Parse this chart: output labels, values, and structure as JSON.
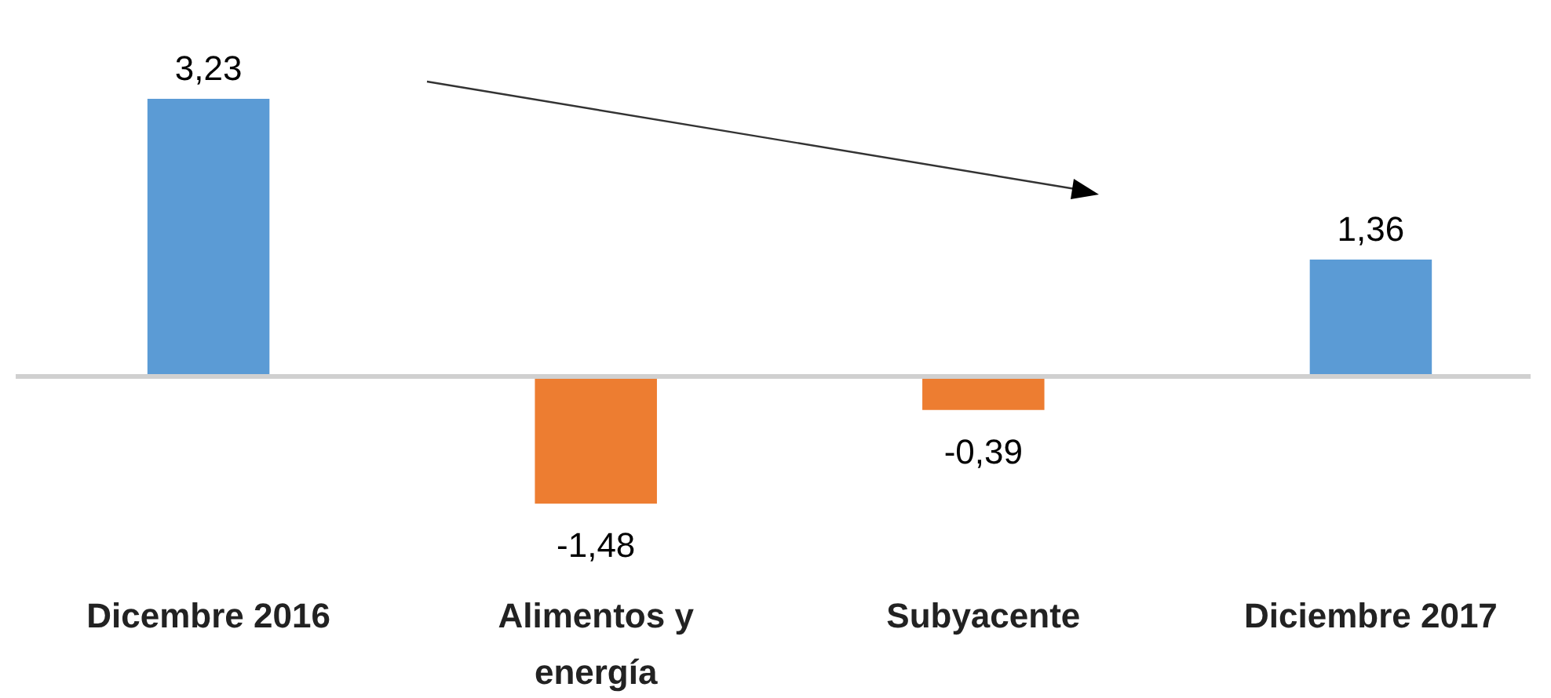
{
  "chart_data": {
    "type": "bar",
    "categories": [
      "Dicembre 2016",
      "Alimentos y energía",
      "Subyacente",
      "Diciembre 2017"
    ],
    "values": [
      3.23,
      -1.48,
      -0.39,
      1.36
    ],
    "colors": [
      "#5b9bd5",
      "#ed7d31",
      "#ed7d31",
      "#5b9bd5"
    ],
    "value_labels": [
      "3,23",
      "-1,48",
      "-0,39",
      "1,36"
    ]
  }
}
